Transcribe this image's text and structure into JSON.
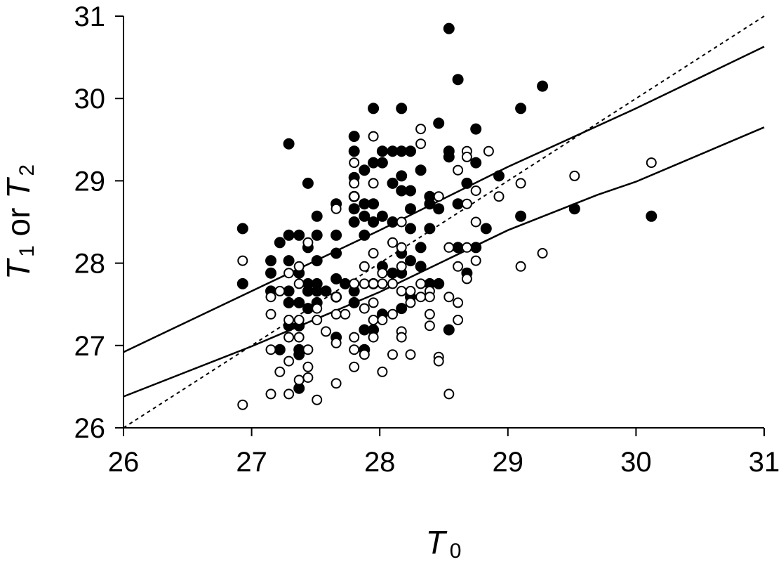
{
  "chart_data": {
    "type": "scatter",
    "title": "",
    "xlabel": {
      "symbol": "T",
      "subscript": "0"
    },
    "ylabel": {
      "parts": [
        {
          "symbol": "T",
          "subscript": "1"
        },
        {
          "text": " or "
        },
        {
          "symbol": "T",
          "subscript": "2"
        }
      ]
    },
    "xlim": [
      26,
      31
    ],
    "ylim": [
      26,
      31
    ],
    "xticks": [
      "26",
      "27",
      "28",
      "29",
      "30",
      "31"
    ],
    "yticks": [
      "26",
      "27",
      "28",
      "29",
      "30",
      "31"
    ],
    "grid": false,
    "legend": "none",
    "colors": {
      "filled": "#000000",
      "open_fill": "#ffffff",
      "open_stroke": "#000000",
      "line": "#000000"
    },
    "series": [
      {
        "marker": "filled-circle",
        "points": [
          [
            26.93,
            28.42
          ],
          [
            26.93,
            27.75
          ],
          [
            27.15,
            28.03
          ],
          [
            27.15,
            27.88
          ],
          [
            27.15,
            27.66
          ],
          [
            27.22,
            28.25
          ],
          [
            27.22,
            26.95
          ],
          [
            27.29,
            29.45
          ],
          [
            27.29,
            28.34
          ],
          [
            27.29,
            28.03
          ],
          [
            27.29,
            27.66
          ],
          [
            27.29,
            27.52
          ],
          [
            27.29,
            27.24
          ],
          [
            27.37,
            28.34
          ],
          [
            27.37,
            27.88
          ],
          [
            27.37,
            27.52
          ],
          [
            27.37,
            27.24
          ],
          [
            27.37,
            26.95
          ],
          [
            27.37,
            26.89
          ],
          [
            27.37,
            26.48
          ],
          [
            27.44,
            28.97
          ],
          [
            27.44,
            28.19
          ],
          [
            27.44,
            27.75
          ],
          [
            27.44,
            27.66
          ],
          [
            27.44,
            27.45
          ],
          [
            27.51,
            28.57
          ],
          [
            27.51,
            28.34
          ],
          [
            27.51,
            28.03
          ],
          [
            27.51,
            27.75
          ],
          [
            27.51,
            27.66
          ],
          [
            27.51,
            27.52
          ],
          [
            27.58,
            27.66
          ],
          [
            27.66,
            28.72
          ],
          [
            27.66,
            28.34
          ],
          [
            27.66,
            28.12
          ],
          [
            27.66,
            27.81
          ],
          [
            27.66,
            27.59
          ],
          [
            27.66,
            27.1
          ],
          [
            27.73,
            27.75
          ],
          [
            27.8,
            29.54
          ],
          [
            27.8,
            29.36
          ],
          [
            27.8,
            29.04
          ],
          [
            27.8,
            28.81
          ],
          [
            27.8,
            28.66
          ],
          [
            27.8,
            28.5
          ],
          [
            27.8,
            27.66
          ],
          [
            27.8,
            27.52
          ],
          [
            27.88,
            29.13
          ],
          [
            27.88,
            28.72
          ],
          [
            27.88,
            28.57
          ],
          [
            27.88,
            28.34
          ],
          [
            27.88,
            27.19
          ],
          [
            27.88,
            26.95
          ],
          [
            27.95,
            29.88
          ],
          [
            27.95,
            29.22
          ],
          [
            27.95,
            28.72
          ],
          [
            27.95,
            28.5
          ],
          [
            27.95,
            27.75
          ],
          [
            27.95,
            27.19
          ],
          [
            28.02,
            29.36
          ],
          [
            28.02,
            29.22
          ],
          [
            28.02,
            28.57
          ],
          [
            28.02,
            27.96
          ],
          [
            28.02,
            27.38
          ],
          [
            28.1,
            29.36
          ],
          [
            28.1,
            28.97
          ],
          [
            28.1,
            28.5
          ],
          [
            28.1,
            27.88
          ],
          [
            28.17,
            29.88
          ],
          [
            28.17,
            29.36
          ],
          [
            28.17,
            29.06
          ],
          [
            28.17,
            28.88
          ],
          [
            28.17,
            28.12
          ],
          [
            28.17,
            27.88
          ],
          [
            28.17,
            27.45
          ],
          [
            28.24,
            29.36
          ],
          [
            28.24,
            28.88
          ],
          [
            28.24,
            28.66
          ],
          [
            28.24,
            28.42
          ],
          [
            28.24,
            28.03
          ],
          [
            28.24,
            27.59
          ],
          [
            28.32,
            29.13
          ],
          [
            28.32,
            28.19
          ],
          [
            28.32,
            27.96
          ],
          [
            28.39,
            28.81
          ],
          [
            28.39,
            28.72
          ],
          [
            28.39,
            28.42
          ],
          [
            28.39,
            27.75
          ],
          [
            28.46,
            29.7
          ],
          [
            28.46,
            28.66
          ],
          [
            28.46,
            27.75
          ],
          [
            28.54,
            30.85
          ],
          [
            28.54,
            29.36
          ],
          [
            28.54,
            29.29
          ],
          [
            28.54,
            27.19
          ],
          [
            28.61,
            30.23
          ],
          [
            28.61,
            28.72
          ],
          [
            28.61,
            28.19
          ],
          [
            28.68,
            28.97
          ],
          [
            28.68,
            27.88
          ],
          [
            28.75,
            29.63
          ],
          [
            28.75,
            29.22
          ],
          [
            28.75,
            28.19
          ],
          [
            28.83,
            28.42
          ],
          [
            28.93,
            29.06
          ],
          [
            29.1,
            29.88
          ],
          [
            29.1,
            28.57
          ],
          [
            29.27,
            30.15
          ],
          [
            29.52,
            28.66
          ],
          [
            30.12,
            28.57
          ]
        ]
      },
      {
        "marker": "open-circle",
        "points": [
          [
            26.93,
            28.03
          ],
          [
            26.93,
            26.28
          ],
          [
            27.15,
            27.59
          ],
          [
            27.15,
            27.38
          ],
          [
            27.15,
            26.95
          ],
          [
            27.15,
            26.41
          ],
          [
            27.22,
            27.66
          ],
          [
            27.22,
            26.68
          ],
          [
            27.29,
            27.88
          ],
          [
            27.29,
            27.31
          ],
          [
            27.29,
            27.1
          ],
          [
            27.29,
            26.81
          ],
          [
            27.29,
            26.41
          ],
          [
            27.37,
            27.96
          ],
          [
            27.37,
            27.75
          ],
          [
            27.37,
            27.31
          ],
          [
            27.37,
            27.1
          ],
          [
            27.37,
            26.58
          ],
          [
            27.44,
            28.25
          ],
          [
            27.44,
            26.95
          ],
          [
            27.44,
            26.74
          ],
          [
            27.44,
            26.61
          ],
          [
            27.51,
            27.45
          ],
          [
            27.51,
            27.31
          ],
          [
            27.51,
            26.34
          ],
          [
            27.58,
            27.17
          ],
          [
            27.66,
            28.66
          ],
          [
            27.66,
            27.59
          ],
          [
            27.66,
            27.38
          ],
          [
            27.66,
            27.03
          ],
          [
            27.66,
            26.54
          ],
          [
            27.73,
            27.38
          ],
          [
            27.8,
            29.22
          ],
          [
            27.8,
            28.97
          ],
          [
            27.8,
            28.81
          ],
          [
            27.8,
            27.75
          ],
          [
            27.8,
            27.1
          ],
          [
            27.8,
            26.95
          ],
          [
            27.8,
            26.74
          ],
          [
            27.88,
            27.96
          ],
          [
            27.88,
            27.75
          ],
          [
            27.88,
            27.45
          ],
          [
            27.88,
            26.89
          ],
          [
            27.95,
            29.54
          ],
          [
            27.95,
            28.97
          ],
          [
            27.95,
            28.12
          ],
          [
            27.95,
            27.75
          ],
          [
            27.95,
            27.52
          ],
          [
            27.95,
            27.31
          ],
          [
            27.95,
            27.1
          ],
          [
            28.02,
            27.88
          ],
          [
            28.02,
            27.75
          ],
          [
            28.02,
            27.31
          ],
          [
            28.02,
            26.68
          ],
          [
            28.1,
            28.25
          ],
          [
            28.1,
            27.75
          ],
          [
            28.1,
            27.38
          ],
          [
            28.1,
            26.89
          ],
          [
            28.17,
            28.5
          ],
          [
            28.17,
            28.19
          ],
          [
            28.17,
            27.96
          ],
          [
            28.17,
            27.66
          ],
          [
            28.17,
            27.17
          ],
          [
            28.17,
            27.1
          ],
          [
            28.24,
            27.66
          ],
          [
            28.24,
            27.52
          ],
          [
            28.24,
            26.89
          ],
          [
            28.32,
            29.63
          ],
          [
            28.32,
            29.45
          ],
          [
            28.32,
            27.75
          ],
          [
            28.32,
            27.59
          ],
          [
            28.39,
            27.66
          ],
          [
            28.39,
            27.59
          ],
          [
            28.39,
            27.38
          ],
          [
            28.39,
            27.24
          ],
          [
            28.46,
            28.81
          ],
          [
            28.46,
            26.86
          ],
          [
            28.46,
            26.81
          ],
          [
            28.54,
            28.19
          ],
          [
            28.54,
            27.59
          ],
          [
            28.54,
            26.41
          ],
          [
            28.61,
            29.13
          ],
          [
            28.61,
            27.96
          ],
          [
            28.61,
            27.52
          ],
          [
            28.61,
            27.31
          ],
          [
            28.68,
            29.36
          ],
          [
            28.68,
            29.29
          ],
          [
            28.68,
            28.72
          ],
          [
            28.68,
            28.19
          ],
          [
            28.68,
            27.81
          ],
          [
            28.75,
            28.88
          ],
          [
            28.75,
            28.5
          ],
          [
            28.75,
            28.03
          ],
          [
            28.85,
            29.36
          ],
          [
            28.93,
            28.81
          ],
          [
            29.1,
            28.97
          ],
          [
            29.1,
            27.96
          ],
          [
            29.27,
            28.12
          ],
          [
            29.52,
            29.06
          ],
          [
            30.12,
            29.22
          ]
        ]
      }
    ],
    "lines": [
      {
        "style": "solid",
        "x": [
          26,
          27,
          28,
          29,
          30,
          31
        ],
        "y": [
          26.92,
          27.66,
          28.4,
          29.17,
          29.88,
          30.63
        ]
      },
      {
        "style": "solid",
        "x": [
          26,
          27,
          28,
          29,
          29.7,
          30,
          31
        ],
        "y": [
          26.38,
          26.99,
          27.65,
          28.4,
          28.83,
          28.99,
          29.65
        ]
      },
      {
        "style": "dashed",
        "x": [
          26,
          31
        ],
        "y": [
          26,
          31
        ]
      }
    ]
  }
}
